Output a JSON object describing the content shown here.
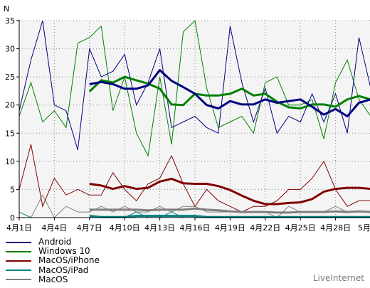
{
  "chart_data": {
    "type": "line",
    "ylabel": "N",
    "ylim": [
      0,
      35
    ],
    "yticks": [
      0,
      5,
      10,
      15,
      20,
      25,
      30,
      35
    ],
    "x": [
      "4月1日",
      "4月2日",
      "4月3日",
      "4月4日",
      "4月5日",
      "4月6日",
      "4月7日",
      "4月8日",
      "4月9日",
      "4月10日",
      "4月11日",
      "4月12日",
      "4月13日",
      "4月14日",
      "4月15日",
      "4月16日",
      "4月17日",
      "4月18日",
      "4月19日",
      "4月20日",
      "4月21日",
      "4月22日",
      "4月23日",
      "4月24日",
      "4月25日",
      "4月26日",
      "4月27日",
      "4月28日",
      "4月29日",
      "4月30日",
      "5月1日"
    ],
    "xticks": [
      "4月1日",
      "4月4日",
      "4月7日",
      "4月10日",
      "4月13日",
      "4月16日",
      "4月19日",
      "4月22日",
      "4月25日",
      "4月28日",
      "5月1日"
    ],
    "grid": true,
    "legend_position": "bottom-left",
    "series": [
      {
        "name": "Android",
        "color": "#000080",
        "values": [
          19,
          28,
          35,
          20,
          19,
          12,
          30,
          25,
          26,
          29,
          20,
          24,
          30,
          16,
          17,
          18,
          16,
          15,
          34,
          24,
          17,
          23,
          15,
          18,
          17,
          22,
          17,
          22,
          15,
          32,
          23
        ],
        "avg": [
          null,
          null,
          null,
          null,
          null,
          null,
          23.7,
          24.1,
          23.7,
          22.9,
          22.9,
          23.5,
          26.2,
          24.3,
          23.2,
          22.0,
          20.0,
          19.4,
          20.7,
          20.1,
          20.1,
          21.0,
          20.4,
          20.7,
          21.0,
          19.7,
          18.3,
          19.3,
          18.0,
          20.4,
          21.0
        ]
      },
      {
        "name": "Windows 10",
        "color": "#008000",
        "values": [
          18,
          24,
          17,
          19,
          16,
          31,
          32,
          34,
          19,
          25,
          15,
          11,
          25,
          13,
          33,
          35,
          23,
          16,
          17,
          18,
          15,
          24,
          25,
          20,
          20,
          21,
          14,
          24,
          28,
          21,
          18
        ],
        "avg": [
          null,
          null,
          null,
          null,
          null,
          null,
          22.4,
          24.4,
          24.0,
          25.0,
          24.4,
          23.8,
          22.9,
          20.1,
          20.0,
          22.0,
          21.7,
          21.7,
          22.0,
          22.9,
          21.7,
          22.0,
          20.6,
          19.6,
          19.4,
          20.1,
          20.1,
          19.7,
          21.0,
          21.6,
          21.0
        ]
      },
      {
        "name": "MacOS/iPhone",
        "color": "#800000",
        "values": [
          5,
          13,
          2,
          7,
          4,
          5,
          4,
          4,
          8,
          5,
          3,
          6,
          7,
          11,
          6,
          2,
          5,
          3,
          2,
          1,
          2,
          2,
          3,
          5,
          5,
          7,
          10,
          5,
          2,
          3,
          3
        ],
        "avg": [
          null,
          null,
          null,
          null,
          null,
          null,
          6.0,
          5.7,
          5.1,
          5.6,
          5.1,
          5.3,
          6.4,
          6.9,
          6.1,
          6.0,
          6.0,
          5.6,
          4.9,
          3.9,
          3.0,
          2.4,
          2.4,
          2.6,
          2.7,
          3.3,
          4.6,
          5.1,
          5.3,
          5.3,
          5.1
        ]
      },
      {
        "name": "MacOS/iPad",
        "color": "#008080",
        "values": [
          1,
          0,
          0,
          0,
          0,
          0,
          0,
          0,
          0,
          0,
          1,
          0,
          0,
          1,
          0,
          0,
          0,
          0,
          0,
          0,
          0,
          0,
          0,
          0,
          0,
          0,
          0,
          0,
          0,
          0,
          0
        ],
        "avg": [
          null,
          null,
          null,
          null,
          null,
          null,
          0.3,
          0.1,
          0.1,
          0.1,
          0.3,
          0.3,
          0.3,
          0.3,
          0.3,
          0.3,
          0.1,
          0.1,
          0.1,
          0.1,
          0.1,
          0.1,
          0.1,
          0.1,
          0.1,
          0.1,
          0.1,
          0.1,
          0.1,
          0.1,
          0.1
        ]
      },
      {
        "name": "MacOS",
        "color": "#808080",
        "values": [
          0,
          0,
          4,
          0,
          2,
          1,
          1,
          2,
          1,
          2,
          1,
          1,
          2,
          1,
          2,
          2,
          1,
          1,
          1,
          1,
          1,
          1,
          0,
          2,
          1,
          1,
          1,
          2,
          1,
          1,
          1
        ],
        "avg": [
          null,
          null,
          null,
          null,
          null,
          null,
          1.4,
          1.4,
          1.4,
          1.4,
          1.4,
          1.3,
          1.4,
          1.4,
          1.4,
          1.6,
          1.4,
          1.3,
          1.1,
          1.0,
          1.0,
          1.0,
          0.9,
          0.9,
          1.0,
          1.0,
          1.0,
          1.1,
          1.0,
          1.1,
          1.0
        ]
      }
    ]
  },
  "credit": "LiveInternet"
}
